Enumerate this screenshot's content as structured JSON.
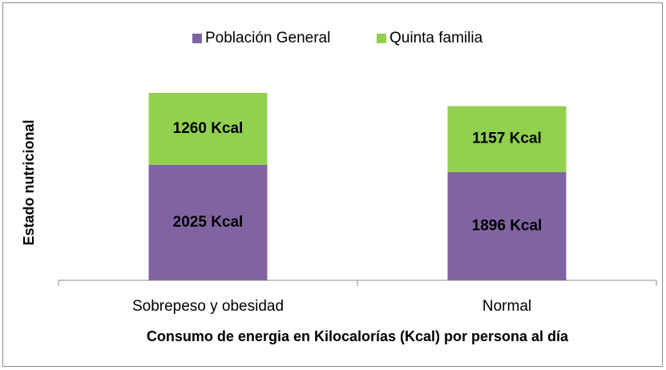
{
  "chart_data": {
    "type": "stacked_bar",
    "categories": [
      "Sobrepeso y obesidad",
      "Normal"
    ],
    "series": [
      {
        "name": "Población General",
        "color": "#8064a2",
        "values": [
          2025,
          1896
        ],
        "value_labels": [
          "2025 Kcal",
          "1896 Kcal"
        ]
      },
      {
        "name": "Quinta familia",
        "color": "#92d050",
        "values": [
          1260,
          1157
        ],
        "value_labels": [
          "1260 Kcal",
          "1157 Kcal"
        ]
      }
    ],
    "xlabel": "Consumo de energia en Kilocalorías (Kcal) por persona al día",
    "ylabel": "Estado nutricional",
    "legend": "top"
  }
}
